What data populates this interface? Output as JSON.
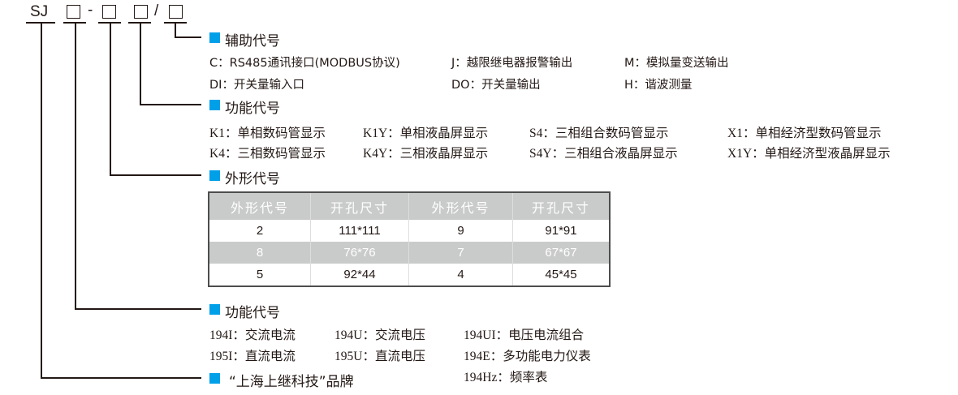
{
  "model": {
    "prefix": "SJ",
    "dash": "-",
    "slash": "/"
  },
  "accent_color": "#00a0e9",
  "aux": {
    "title": "辅助代号",
    "rows": [
      [
        "C：RS485通讯接口(MODBUS协议)",
        "J：越限继电器报警输出",
        "M：模拟量变送输出"
      ],
      [
        "DI：开关量输入口",
        "DO：开关量输出",
        "H：谐波测量"
      ]
    ]
  },
  "display": {
    "title": "功能代号",
    "rows": [
      [
        "K1：单相数码管显示",
        "K1Y：单相液晶屏显示",
        "S4：三相组合数码管显示",
        "X1：单相经济型数码管显示"
      ],
      [
        "K4：三相数码管显示",
        "K4Y：三相液晶屏显示",
        "S4Y：三相组合液晶屏显示",
        "X1Y：单相经济型液晶屏显示"
      ]
    ]
  },
  "shape": {
    "title": "外形代号",
    "headers": [
      "外形代号",
      "开孔尺寸",
      "外形代号",
      "开孔尺寸"
    ],
    "rows": [
      [
        "2",
        "111*111",
        "9",
        "91*91"
      ],
      [
        "8",
        "76*76",
        "7",
        "67*67"
      ],
      [
        "5",
        "92*44",
        "4",
        "45*45"
      ]
    ]
  },
  "function": {
    "title": "功能代号",
    "rows": [
      [
        "194I：交流电流",
        "194U：交流电压",
        "194UI：电压电流组合"
      ],
      [
        "195I：直流电流",
        "195U：直流电压",
        "194E：多功能电力仪表"
      ],
      [
        "",
        "",
        "194Hz：频率表"
      ]
    ]
  },
  "brand": {
    "title": "“上海上继科技”品牌"
  }
}
